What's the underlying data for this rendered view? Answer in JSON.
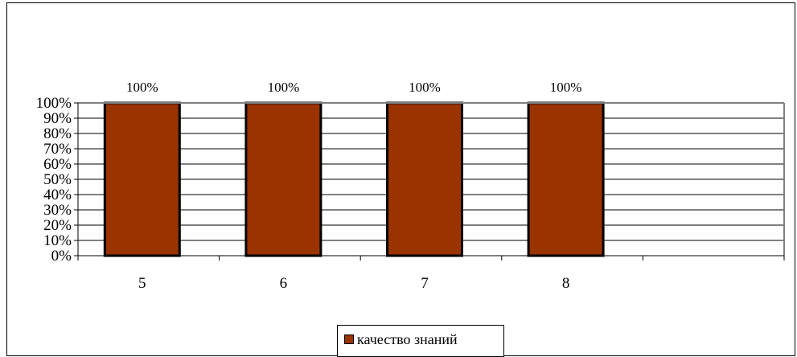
{
  "chart_data": {
    "type": "bar",
    "categories": [
      "5",
      "6",
      "7",
      "8",
      ""
    ],
    "series": [
      {
        "name": "качество знаний",
        "values": [
          100,
          100,
          100,
          100,
          null
        ],
        "color": "#993300"
      }
    ],
    "data_labels": [
      "100%",
      "100%",
      "100%",
      "100%"
    ],
    "yticks": [
      "0%",
      "10%",
      "20%",
      "30%",
      "40%",
      "50%",
      "60%",
      "70%",
      "80%",
      "90%",
      "100%"
    ],
    "ylim": [
      0,
      100
    ],
    "title": "",
    "xlabel": "",
    "ylabel": "",
    "grid": true,
    "legend_position": "bottom",
    "plot_background": "#ffffff",
    "gridline_color": "#000000",
    "border_color": "#808080"
  },
  "legend": {
    "label": "качество знаний"
  }
}
